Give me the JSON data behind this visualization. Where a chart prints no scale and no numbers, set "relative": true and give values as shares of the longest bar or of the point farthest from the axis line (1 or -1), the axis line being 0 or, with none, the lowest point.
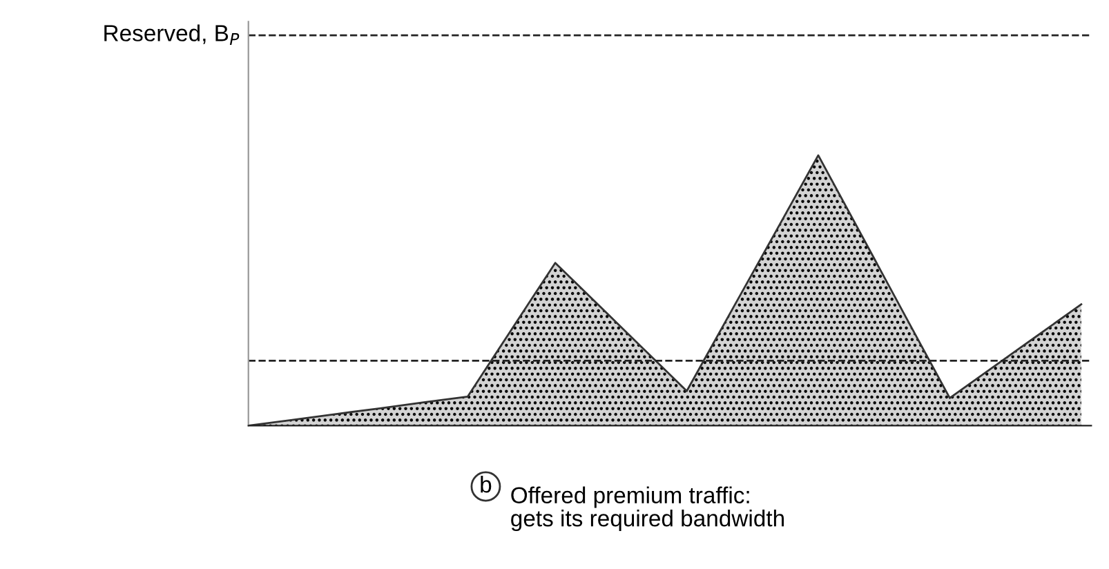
{
  "chart_data": {
    "type": "area",
    "relative": true,
    "categories": [
      null,
      null,
      null,
      null,
      null,
      null,
      null,
      null,
      null,
      null,
      null,
      null,
      null,
      null,
      null,
      null,
      null,
      null,
      null,
      null
    ],
    "series": [
      {
        "color": "#d3d3d3",
        "values": [
          0,
          0.021,
          0.043,
          0.064,
          0.086,
          0.107,
          0.355,
          0.602,
          0.444,
          0.286,
          0.128,
          0.419,
          0.709,
          1,
          0.701,
          0.401,
          0.102,
          0.218,
          0.333,
          0.449
        ]
      }
    ],
    "ref_lines": [
      {
        "axis": "y",
        "value": 1.444,
        "label": "Reserved, B$_{P}$",
        "line_style": "dashed",
        "color": "#222222"
      },
      {
        "axis": "y",
        "value": 0.24,
        "line_style": "dashed",
        "color": "#222222"
      }
    ],
    "annotations": [
      "b",
      "Offered premium traffic:\ngets its required bandwidth"
    ]
  }
}
